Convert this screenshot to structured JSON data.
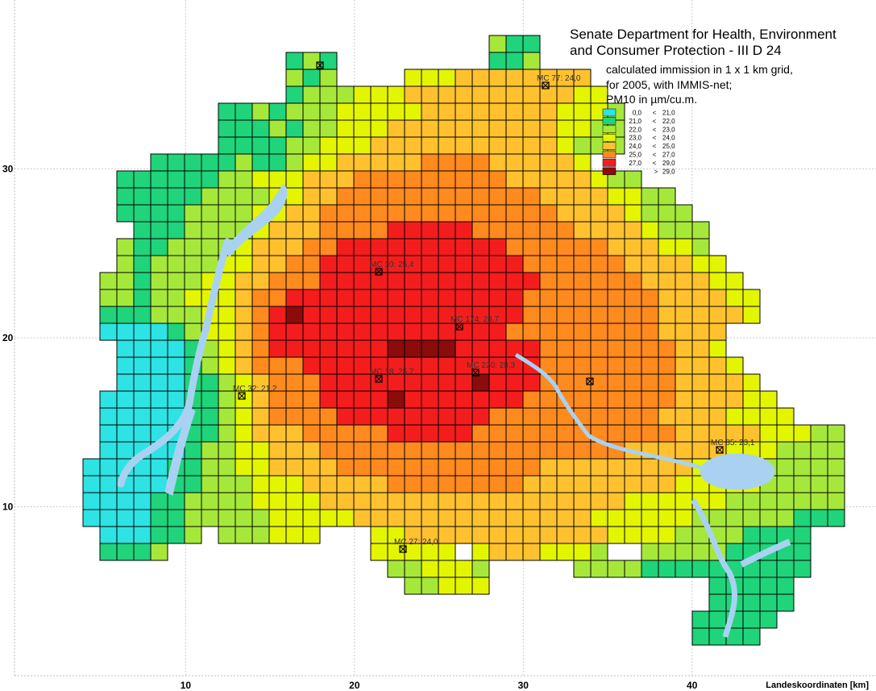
{
  "title": [
    "Senate Department for Health, Environment",
    "and Consumer Protection - III D 24"
  ],
  "subtitle": [
    "calculated immission in 1 x 1 km grid,",
    "for 2005, with IMMIS-net;",
    "PM10 in µm/cu.m."
  ],
  "legend": [
    {
      "low": {
        "value": 0,
        "label": "0,0"
      },
      "sign": "<",
      "high": {
        "value": 21,
        "label": "21,0"
      },
      "color": "#2ee3e3"
    },
    {
      "low": {
        "value": 21,
        "label": "21,0"
      },
      "sign": "<",
      "high": {
        "value": 22,
        "label": "22,0"
      },
      "color": "#1fd47a"
    },
    {
      "low": {
        "value": 22,
        "label": "22,0"
      },
      "sign": "<",
      "high": {
        "value": 23,
        "label": "23,0"
      },
      "color": "#a6e83a"
    },
    {
      "low": {
        "value": 23,
        "label": "23,0"
      },
      "sign": "<",
      "high": {
        "value": 24,
        "label": "24,0"
      },
      "color": "#e4f500"
    },
    {
      "low": {
        "value": 24,
        "label": "24,0"
      },
      "sign": "<",
      "high": {
        "value": 25,
        "label": "25,0"
      },
      "color": "#ffc22e"
    },
    {
      "low": {
        "value": 25,
        "label": "25,0"
      },
      "sign": "<",
      "high": {
        "value": 27,
        "label": "27,0"
      },
      "color": "#ff8a1e"
    },
    {
      "low": {
        "value": 27,
        "label": "27,0"
      },
      "sign": "<",
      "high": {
        "value": 29,
        "label": "29,0"
      },
      "color": "#f41d1d"
    },
    {
      "low": {
        "value": 29,
        "label": "29,0"
      },
      "sign": ">",
      "color": "#8c0b0b"
    }
  ],
  "stations": [
    {
      "label": "MC 77: 24,0"
    },
    {
      "label": "MC 10: 25,4"
    },
    {
      "label": "MC 174: 28,7"
    },
    {
      "label": "MC 18: 25,7"
    },
    {
      "label": "MC 220: 28,3"
    },
    {
      "label": "MC 32: 21,2"
    },
    {
      "label": "MC 85: 23,1"
    },
    {
      "label": "MC 27: 24,0"
    }
  ],
  "axis": {
    "label": "Landeskoordinaten [km]",
    "xlim": [
      0,
      50.9
    ],
    "ylim": [
      0,
      40
    ],
    "xticks": [
      10,
      20,
      30,
      40
    ],
    "yticks": [
      10,
      20,
      30
    ]
  },
  "cells": [
    [
      null,
      null,
      null,
      null,
      null,
      null,
      null,
      null,
      null,
      null,
      null,
      null,
      null,
      null,
      null,
      null,
      null,
      null,
      null,
      null,
      null,
      null,
      null,
      null,
      22,
      21,
      21
    ],
    [
      null,
      null,
      null,
      null,
      null,
      null,
      null,
      null,
      null,
      null,
      null,
      null,
      21,
      22,
      21,
      null,
      null,
      null,
      null,
      null,
      null,
      null,
      null,
      null,
      21,
      21,
      22
    ],
    [
      null,
      null,
      null,
      null,
      null,
      null,
      null,
      null,
      null,
      null,
      null,
      null,
      22,
      21,
      22,
      null,
      null,
      null,
      null,
      23,
      23,
      23,
      24,
      24,
      24,
      24,
      24,
      24,
      24,
      24
    ],
    [
      null,
      null,
      null,
      null,
      null,
      null,
      null,
      null,
      null,
      null,
      null,
      null,
      21,
      22,
      22,
      22,
      23,
      23,
      23,
      24,
      24,
      24,
      24,
      24,
      24,
      24,
      24,
      24,
      24,
      23,
      23
    ],
    [
      null,
      null,
      null,
      null,
      null,
      null,
      null,
      null,
      21,
      21,
      22,
      21,
      22,
      22,
      22,
      23,
      23,
      23,
      23,
      23,
      24,
      24,
      24,
      24,
      24,
      24,
      24,
      24,
      23,
      23,
      23,
      22
    ],
    [
      null,
      null,
      null,
      null,
      null,
      null,
      null,
      null,
      21,
      21,
      21,
      22,
      21,
      22,
      22,
      23,
      23,
      23,
      24,
      24,
      24,
      24,
      24,
      24,
      24,
      24,
      24,
      24,
      23,
      23,
      22,
      22
    ],
    [
      null,
      null,
      null,
      null,
      null,
      null,
      null,
      null,
      21,
      21,
      21,
      21,
      22,
      22,
      23,
      23,
      23,
      24,
      24,
      24,
      24,
      24,
      24,
      24,
      24,
      24,
      24,
      24,
      23,
      22,
      22,
      22
    ],
    [
      null,
      null,
      null,
      null,
      21,
      21,
      21,
      21,
      21,
      22,
      21,
      21,
      22,
      23,
      23,
      24,
      24,
      24,
      24,
      24,
      26,
      26,
      26,
      26,
      24,
      24,
      24,
      24,
      24,
      23
    ],
    [
      null,
      null,
      21,
      21,
      21,
      21,
      21,
      21,
      22,
      22,
      23,
      23,
      23,
      24,
      24,
      24,
      26,
      26,
      26,
      26,
      26,
      26,
      26,
      26,
      26,
      24,
      24,
      24,
      24,
      24,
      23,
      22,
      22
    ],
    [
      null,
      null,
      21,
      21,
      21,
      21,
      21,
      22,
      22,
      22,
      22,
      23,
      23,
      24,
      24,
      26,
      26,
      26,
      26,
      26,
      26,
      26,
      26,
      26,
      26,
      26,
      26,
      24,
      24,
      24,
      24,
      23,
      23,
      22,
      22
    ],
    [
      null,
      null,
      21,
      21,
      21,
      21,
      22,
      22,
      22,
      22,
      23,
      23,
      24,
      24,
      26,
      26,
      26,
      26,
      26,
      26,
      26,
      26,
      26,
      26,
      26,
      26,
      26,
      26,
      24,
      24,
      24,
      24,
      23,
      22,
      22,
      22
    ],
    [
      null,
      null,
      null,
      21,
      21,
      21,
      22,
      22,
      22,
      22,
      23,
      24,
      24,
      24,
      26,
      26,
      26,
      26,
      28,
      28,
      28,
      28,
      28,
      26,
      26,
      26,
      26,
      26,
      26,
      24,
      24,
      24,
      24,
      23,
      22,
      22,
      22
    ],
    [
      null,
      null,
      22,
      21,
      21,
      22,
      22,
      22,
      22,
      23,
      24,
      24,
      24,
      26,
      26,
      28,
      28,
      28,
      28,
      28,
      28,
      28,
      28,
      28,
      28,
      26,
      26,
      26,
      26,
      26,
      26,
      24,
      24,
      24,
      23,
      23,
      22
    ],
    [
      null,
      null,
      22,
      21,
      22,
      22,
      22,
      22,
      23,
      23,
      24,
      24,
      26,
      26,
      28,
      28,
      28,
      28,
      28,
      28,
      28,
      28,
      28,
      28,
      28,
      28,
      26,
      26,
      26,
      26,
      26,
      26,
      24,
      24,
      24,
      24,
      23,
      23
    ],
    [
      null,
      22,
      22,
      21,
      22,
      22,
      22,
      23,
      23,
      24,
      24,
      26,
      26,
      26,
      28,
      28,
      28,
      28,
      28,
      28,
      28,
      28,
      28,
      28,
      28,
      28,
      28,
      26,
      26,
      26,
      26,
      26,
      26,
      24,
      24,
      24,
      24,
      23,
      23
    ],
    [
      null,
      22,
      22,
      21,
      22,
      22,
      23,
      23,
      23,
      24,
      26,
      26,
      28,
      28,
      28,
      28,
      28,
      28,
      28,
      28,
      28,
      28,
      28,
      28,
      28,
      28,
      26,
      26,
      26,
      26,
      26,
      26,
      26,
      26,
      24,
      24,
      24,
      24,
      23,
      23
    ],
    [
      null,
      21,
      21,
      21,
      22,
      22,
      22,
      23,
      23,
      24,
      26,
      28,
      30,
      28,
      28,
      28,
      28,
      28,
      28,
      28,
      28,
      28,
      28,
      28,
      28,
      28,
      26,
      26,
      26,
      26,
      26,
      26,
      26,
      26,
      24,
      24,
      24,
      24,
      24,
      23
    ],
    [
      null,
      20,
      20,
      20,
      20,
      21,
      22,
      23,
      23,
      24,
      26,
      28,
      28,
      28,
      28,
      28,
      28,
      28,
      28,
      28,
      28,
      28,
      28,
      28,
      28,
      26,
      26,
      26,
      26,
      26,
      26,
      26,
      26,
      26,
      24,
      24,
      24,
      24
    ],
    [
      null,
      null,
      20,
      20,
      20,
      20,
      21,
      22,
      23,
      24,
      26,
      28,
      28,
      28,
      28,
      28,
      28,
      28,
      30,
      30,
      30,
      30,
      28,
      28,
      28,
      28,
      28,
      26,
      26,
      26,
      26,
      26,
      26,
      26,
      26,
      24,
      24,
      23
    ],
    [
      null,
      null,
      20,
      20,
      20,
      20,
      21,
      22,
      23,
      24,
      26,
      26,
      26,
      28,
      28,
      28,
      28,
      28,
      28,
      28,
      28,
      28,
      28,
      28,
      28,
      28,
      28,
      26,
      26,
      26,
      26,
      26,
      26,
      26,
      26,
      24,
      24,
      24,
      23
    ],
    [
      null,
      null,
      20,
      20,
      20,
      20,
      21,
      21,
      22,
      23,
      24,
      26,
      26,
      26,
      28,
      28,
      28,
      28,
      28,
      28,
      28,
      28,
      28,
      30,
      28,
      28,
      28,
      26,
      26,
      26,
      26,
      26,
      26,
      26,
      26,
      24,
      24,
      24,
      24,
      23
    ],
    [
      null,
      20,
      20,
      20,
      20,
      20,
      21,
      21,
      22,
      23,
      24,
      26,
      26,
      26,
      28,
      28,
      28,
      28,
      30,
      28,
      28,
      28,
      28,
      28,
      28,
      28,
      26,
      26,
      26,
      26,
      26,
      26,
      26,
      26,
      26,
      24,
      24,
      24,
      24,
      23,
      23
    ],
    [
      null,
      20,
      20,
      20,
      20,
      20,
      21,
      21,
      22,
      23,
      24,
      26,
      26,
      26,
      26,
      28,
      28,
      28,
      28,
      28,
      28,
      28,
      28,
      28,
      26,
      26,
      26,
      26,
      26,
      26,
      26,
      26,
      26,
      26,
      24,
      24,
      24,
      24,
      23,
      23,
      23,
      23
    ],
    [
      null,
      20,
      20,
      20,
      20,
      20,
      21,
      21,
      22,
      23,
      24,
      24,
      24,
      26,
      26,
      26,
      26,
      26,
      28,
      28,
      28,
      28,
      28,
      26,
      26,
      26,
      26,
      26,
      26,
      26,
      26,
      26,
      26,
      26,
      26,
      24,
      24,
      24,
      24,
      24,
      23,
      23,
      23,
      22,
      22
    ],
    [
      null,
      20,
      20,
      20,
      20,
      20,
      21,
      22,
      22,
      23,
      23,
      24,
      24,
      24,
      26,
      26,
      26,
      26,
      26,
      26,
      26,
      26,
      26,
      26,
      26,
      26,
      26,
      26,
      26,
      26,
      26,
      26,
      24,
      24,
      24,
      24,
      24,
      24,
      23,
      23,
      23,
      22,
      22,
      22,
      22
    ],
    [
      20,
      20,
      20,
      20,
      20,
      21,
      21,
      22,
      22,
      23,
      23,
      24,
      24,
      24,
      24,
      26,
      26,
      26,
      26,
      26,
      26,
      26,
      26,
      26,
      26,
      26,
      26,
      24,
      24,
      24,
      24,
      24,
      24,
      24,
      24,
      24,
      23,
      23,
      23,
      23,
      22,
      22,
      22,
      22,
      22
    ],
    [
      20,
      20,
      20,
      20,
      20,
      21,
      21,
      22,
      22,
      22,
      23,
      23,
      23,
      24,
      24,
      24,
      24,
      24,
      26,
      26,
      26,
      26,
      26,
      26,
      26,
      26,
      24,
      24,
      24,
      24,
      24,
      24,
      24,
      24,
      24,
      23,
      23,
      23,
      23,
      23,
      22,
      22,
      22,
      22,
      22
    ],
    [
      20,
      20,
      20,
      20,
      21,
      21,
      22,
      22,
      22,
      22,
      23,
      23,
      23,
      23,
      24,
      24,
      24,
      24,
      24,
      24,
      24,
      24,
      24,
      24,
      24,
      24,
      24,
      24,
      24,
      24,
      24,
      24,
      23,
      23,
      23,
      23,
      23,
      23,
      22,
      22,
      22,
      22,
      22,
      22,
      22
    ],
    [
      20,
      20,
      20,
      20,
      21,
      21,
      22,
      22,
      22,
      22,
      22,
      23,
      23,
      23,
      23,
      23,
      24,
      24,
      24,
      24,
      24,
      24,
      24,
      24,
      24,
      24,
      24,
      24,
      24,
      24,
      23,
      23,
      23,
      23,
      23,
      23,
      22,
      22,
      22,
      22,
      22,
      22,
      21,
      21,
      21
    ],
    [
      null,
      20,
      20,
      20,
      21,
      21,
      22,
      null,
      22,
      22,
      22,
      23,
      23,
      23,
      null,
      null,
      null,
      23,
      23,
      24,
      24,
      24,
      24,
      24,
      24,
      24,
      24,
      24,
      24,
      24,
      24,
      23,
      23,
      23,
      23,
      22,
      22,
      22,
      22,
      21,
      21,
      21,
      21
    ],
    [
      null,
      21,
      21,
      21,
      22,
      null,
      null,
      null,
      null,
      null,
      null,
      null,
      null,
      null,
      null,
      null,
      null,
      23,
      23,
      23,
      23,
      23,
      null,
      23,
      24,
      24,
      24,
      23,
      23,
      23,
      22,
      null,
      null,
      22,
      22,
      22,
      22,
      22,
      21,
      21,
      21,
      21,
      21
    ],
    [
      null,
      null,
      null,
      null,
      null,
      null,
      null,
      null,
      null,
      null,
      null,
      null,
      null,
      null,
      null,
      null,
      null,
      null,
      22,
      22,
      23,
      23,
      23,
      22,
      null,
      null,
      null,
      null,
      null,
      22,
      22,
      22,
      22,
      21,
      21,
      21,
      21,
      21,
      21,
      21,
      21,
      21,
      21
    ],
    [
      null,
      null,
      null,
      null,
      null,
      null,
      null,
      null,
      null,
      null,
      null,
      null,
      null,
      null,
      null,
      null,
      null,
      null,
      null,
      22,
      22,
      23,
      23,
      23,
      null,
      null,
      null,
      null,
      null,
      null,
      null,
      null,
      null,
      null,
      null,
      null,
      null,
      21,
      21,
      21,
      21,
      21
    ],
    [
      null,
      null,
      null,
      null,
      null,
      null,
      null,
      null,
      null,
      null,
      null,
      null,
      null,
      null,
      null,
      null,
      null,
      null,
      null,
      null,
      null,
      null,
      null,
      null,
      null,
      null,
      null,
      null,
      null,
      null,
      null,
      null,
      null,
      null,
      null,
      null,
      null,
      21,
      21,
      21,
      21,
      21
    ],
    [
      null,
      null,
      null,
      null,
      null,
      null,
      null,
      null,
      null,
      null,
      null,
      null,
      null,
      null,
      null,
      null,
      null,
      null,
      null,
      null,
      null,
      null,
      null,
      null,
      null,
      null,
      null,
      null,
      null,
      null,
      null,
      null,
      null,
      null,
      null,
      null,
      21,
      21,
      21,
      21,
      21
    ],
    [
      null,
      null,
      null,
      null,
      null,
      null,
      null,
      null,
      null,
      null,
      null,
      null,
      null,
      null,
      null,
      null,
      null,
      null,
      null,
      null,
      null,
      null,
      null,
      null,
      null,
      null,
      null,
      null,
      null,
      null,
      null,
      null,
      null,
      null,
      null,
      null,
      21,
      21,
      21,
      21
    ]
  ]
}
